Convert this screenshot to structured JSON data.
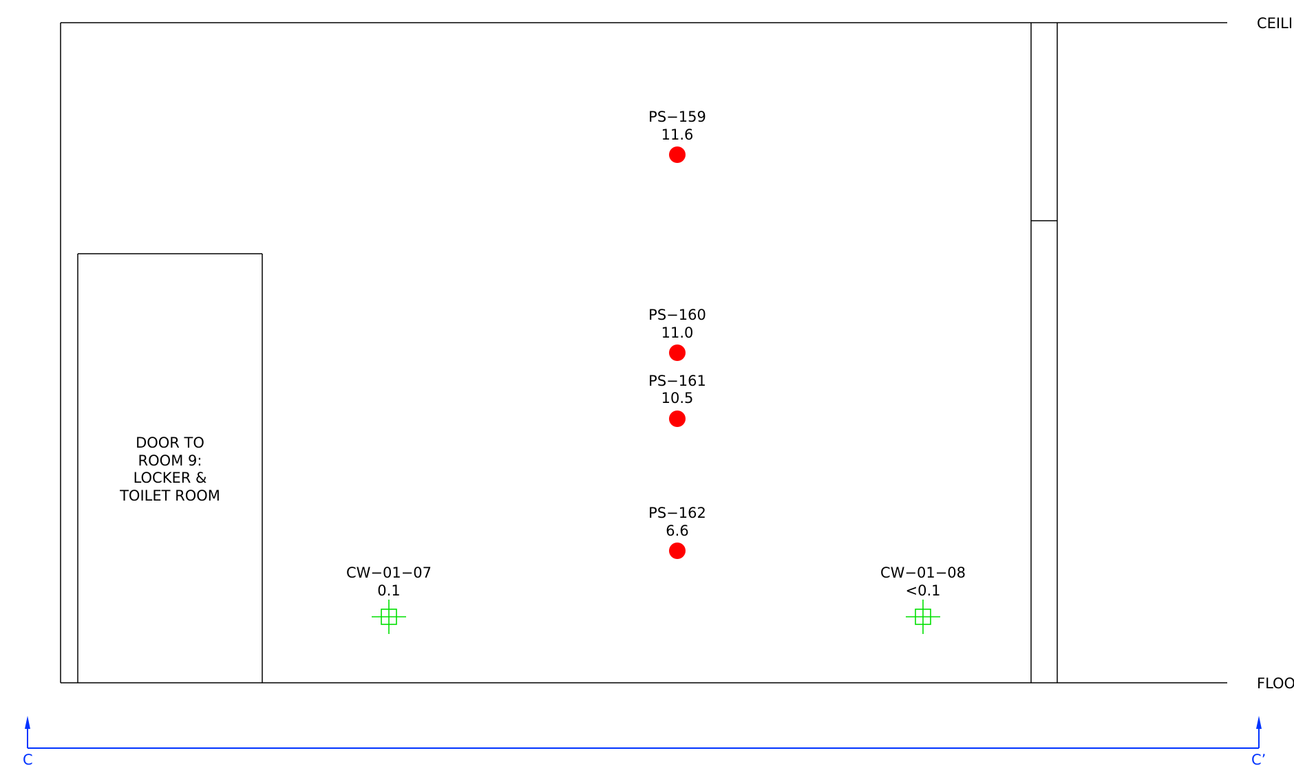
{
  "colors": {
    "line": "#000000",
    "sample_point": "#ff0000",
    "wipe_sample": "#00e000",
    "section_marker": "#0033ff"
  },
  "level_labels": {
    "ceiling": "CEILI",
    "floor": "FLOO"
  },
  "door_label": [
    "DOOR TO",
    "ROOM 9:",
    "LOCKER &",
    "TOILET ROOM"
  ],
  "samples": [
    {
      "id": "PS−159",
      "value": "11.6",
      "icon": "red-dot-icon"
    },
    {
      "id": "PS−160",
      "value": "11.0",
      "icon": "red-dot-icon"
    },
    {
      "id": "PS−161",
      "value": "10.5",
      "icon": "red-dot-icon"
    },
    {
      "id": "PS−162",
      "value": "6.6",
      "icon": "red-dot-icon"
    }
  ],
  "wipes": [
    {
      "id": "CW−01−07",
      "value": "0.1",
      "icon": "crosshair-square-icon"
    },
    {
      "id": "CW−01−08",
      "value": "<0.1",
      "icon": "crosshair-square-icon"
    }
  ],
  "section": {
    "start": "C",
    "end": "C’",
    "icon": "arrow-up-icon"
  }
}
